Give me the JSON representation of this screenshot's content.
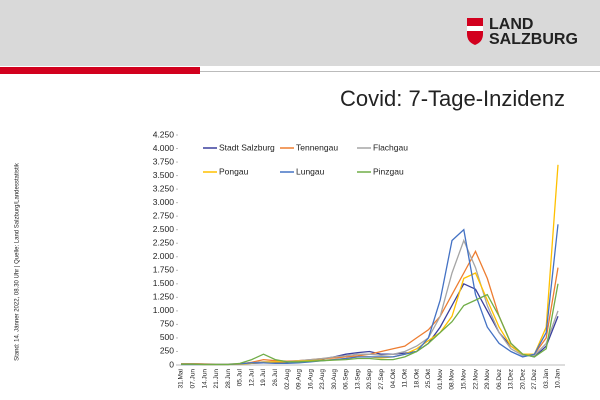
{
  "header": {
    "logo_line1": "LAND",
    "logo_line2": "SALZBURG"
  },
  "source": "Stand: 14. Jänner 2022, 08.30 Uhr | Quelle: Land Salzburg/Landesstatistik",
  "chart_data": {
    "type": "line",
    "title": "Covid: 7-Tage-Inzidenz",
    "categories": [
      "31.Mai",
      "07.Jun",
      "14.Jun",
      "21.Jun",
      "28.Jun",
      "05.Jul",
      "12.Jul",
      "19.Jul",
      "26.Jul",
      "02.Aug",
      "09.Aug",
      "16.Aug",
      "23.Aug",
      "30.Aug",
      "06.Sep",
      "13.Sep",
      "20.Sep",
      "27.Sep",
      "04.Okt",
      "11.Okt",
      "18.Okt",
      "25.Okt",
      "01.Nov",
      "08.Nov",
      "15.Nov",
      "22.Nov",
      "29.Nov",
      "06.Dez",
      "13.Dez",
      "20.Dez",
      "27.Dez",
      "03.Jan",
      "10.Jan"
    ],
    "series": [
      {
        "name": "Stadt Salzburg",
        "color": "#3a3f9e",
        "values": [
          20,
          20,
          15,
          15,
          15,
          20,
          30,
          40,
          40,
          50,
          70,
          90,
          110,
          150,
          200,
          230,
          250,
          200,
          200,
          220,
          250,
          400,
          700,
          1100,
          1500,
          1400,
          1000,
          600,
          350,
          200,
          150,
          350,
          900
        ]
      },
      {
        "name": "Tennengau",
        "color": "#ed7d31",
        "values": [
          25,
          25,
          20,
          15,
          15,
          20,
          50,
          100,
          80,
          70,
          80,
          100,
          120,
          130,
          150,
          170,
          200,
          250,
          300,
          350,
          500,
          650,
          900,
          1300,
          1700,
          2100,
          1600,
          900,
          400,
          200,
          200,
          500,
          1800
        ]
      },
      {
        "name": "Flachgau",
        "color": "#a5a5a5",
        "values": [
          20,
          20,
          15,
          15,
          15,
          20,
          40,
          60,
          60,
          60,
          80,
          100,
          120,
          150,
          170,
          200,
          200,
          180,
          200,
          250,
          350,
          500,
          900,
          1700,
          2300,
          1800,
          1100,
          600,
          300,
          180,
          180,
          400,
          1000
        ]
      },
      {
        "name": "Pongau",
        "color": "#ffc000",
        "values": [
          15,
          15,
          10,
          10,
          10,
          15,
          30,
          50,
          60,
          60,
          70,
          80,
          90,
          100,
          120,
          150,
          150,
          130,
          150,
          200,
          300,
          450,
          600,
          900,
          1600,
          1700,
          1200,
          700,
          350,
          200,
          200,
          700,
          3700
        ]
      },
      {
        "name": "Lungau",
        "color": "#4472c4",
        "values": [
          10,
          10,
          10,
          10,
          10,
          20,
          40,
          40,
          30,
          30,
          40,
          60,
          80,
          100,
          120,
          150,
          150,
          150,
          150,
          200,
          250,
          500,
          1200,
          2300,
          2500,
          1300,
          700,
          400,
          250,
          150,
          200,
          600,
          2600
        ]
      },
      {
        "name": "Pinzgau",
        "color": "#70ad47",
        "values": [
          15,
          15,
          10,
          10,
          10,
          30,
          100,
          200,
          100,
          60,
          60,
          70,
          80,
          90,
          100,
          120,
          120,
          100,
          100,
          150,
          250,
          400,
          600,
          800,
          1100,
          1200,
          1300,
          900,
          400,
          200,
          150,
          300,
          1500
        ]
      }
    ],
    "ylim": [
      0,
      4250
    ],
    "yticks": [
      0,
      250,
      500,
      750,
      {
        "value": 1000,
        "label": "1.000"
      },
      {
        "value": 1250,
        "label": "1.250"
      },
      {
        "value": 1500,
        "label": "1.500"
      },
      {
        "value": 1750,
        "label": "1.750"
      },
      {
        "value": 2000,
        "label": "2.000"
      },
      {
        "value": 2250,
        "label": "2.250"
      },
      {
        "value": 2500,
        "label": "2.500"
      },
      {
        "value": 2750,
        "label": "2.750"
      },
      {
        "value": 3000,
        "label": "3.000"
      },
      {
        "value": 3250,
        "label": "3.250"
      },
      {
        "value": 3500,
        "label": "3.500"
      },
      {
        "value": 3750,
        "label": "3.750"
      },
      {
        "value": 4000,
        "label": "4.000"
      },
      {
        "value": 4250,
        "label": "4.250"
      }
    ],
    "grid": false
  }
}
